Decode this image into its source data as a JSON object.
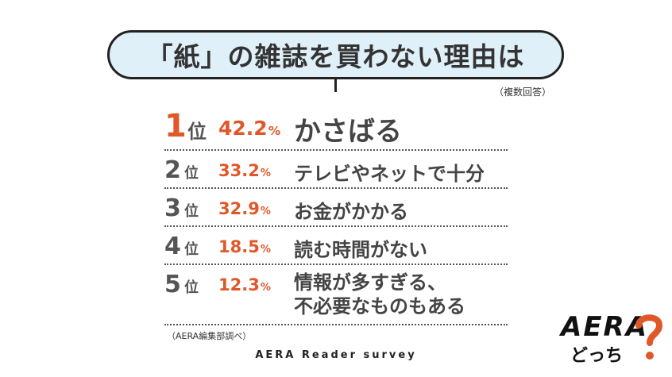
{
  "chart_data": {
    "type": "table",
    "title": "「紙」の雑誌を買わない理由は",
    "note_multiple": "（複数回答）",
    "rank_suffix": "位",
    "percent_unit": "%",
    "rows": [
      {
        "rank": "1",
        "value": 42.2,
        "value_label": "42.2",
        "reason": [
          "かさばる"
        ]
      },
      {
        "rank": "2",
        "value": 33.2,
        "value_label": "33.2",
        "reason": [
          "テレビやネットで十分"
        ]
      },
      {
        "rank": "3",
        "value": 32.9,
        "value_label": "32.9",
        "reason": [
          "お金がかかる"
        ]
      },
      {
        "rank": "4",
        "value": 18.5,
        "value_label": "18.5",
        "reason": [
          "読む時間がない"
        ]
      },
      {
        "rank": "5",
        "value": 12.3,
        "value_label": "12.3",
        "reason": [
          "情報が多すぎる、",
          "不必要なものもある"
        ]
      }
    ],
    "source": "（AERA編集部調べ）",
    "survey_label": "AERA Reader survey"
  },
  "logo": {
    "text": "AERA",
    "sub": "どっち",
    "accent_color": "#e0582a"
  },
  "colors": {
    "accent": "#e0582a",
    "bubble": "#dff0f8",
    "text": "#444444"
  }
}
